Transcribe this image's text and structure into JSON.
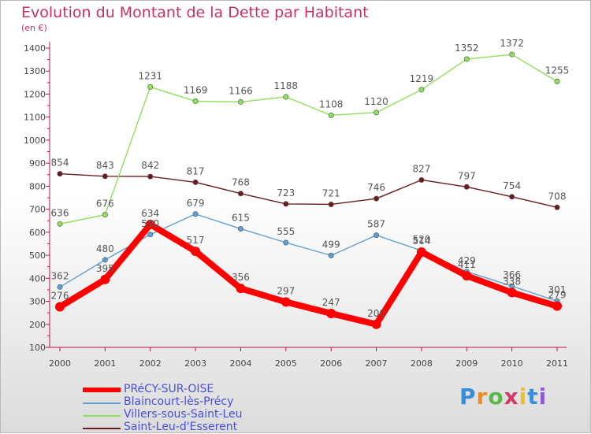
{
  "chart_data": {
    "type": "line",
    "title": "Evolution du Montant de la Dette par Habitant",
    "unit_label": "(en €)",
    "categories": [
      "2000",
      "2001",
      "2002",
      "2003",
      "2004",
      "2005",
      "2006",
      "2007",
      "2008",
      "2009",
      "2010",
      "2011"
    ],
    "yticks": [
      100,
      200,
      300,
      400,
      500,
      600,
      700,
      800,
      900,
      1000,
      1100,
      1200,
      1300,
      1400
    ],
    "ylim": [
      100,
      1400
    ],
    "grid": "none",
    "legend_placement": "bottom-left",
    "series": [
      {
        "name": "Saint-Leu-d'Esserent",
        "color": "#6b1b1f",
        "values": [
          854,
          843,
          842,
          817,
          768,
          723,
          721,
          746,
          827,
          797,
          754,
          708
        ]
      },
      {
        "name": "Villers-sous-Saint-Leu",
        "color": "#8ee05a",
        "values": [
          636,
          676,
          1231,
          1169,
          1166,
          1188,
          1108,
          1120,
          1219,
          1352,
          1372,
          1255
        ]
      },
      {
        "name": "Blaincourt-lès-Précy",
        "color": "#5fa0d2",
        "values": [
          362,
          480,
          590,
          679,
          615,
          555,
          499,
          587,
          520,
          429,
          366,
          301
        ]
      },
      {
        "name": "PRéCY-SUR-OISE",
        "color": "#ff0000",
        "values": [
          276,
          395,
          634,
          517,
          356,
          297,
          247,
          200,
          514,
          411,
          338,
          279
        ]
      }
    ],
    "legend": [
      "PRéCY-SUR-OISE",
      "Blaincourt-lès-Précy",
      "Villers-sous-Saint-Leu",
      "Saint-Leu-d'Esserent"
    ]
  },
  "logo": {
    "letters": [
      "P",
      "r",
      "o",
      "x",
      "i",
      "t",
      "i"
    ],
    "colors": [
      "#3a8ed8",
      "#f08a1e",
      "#5ab84a",
      "#d23a6a",
      "#f0c020",
      "#3a8ed8",
      "#8a5ad8"
    ]
  }
}
